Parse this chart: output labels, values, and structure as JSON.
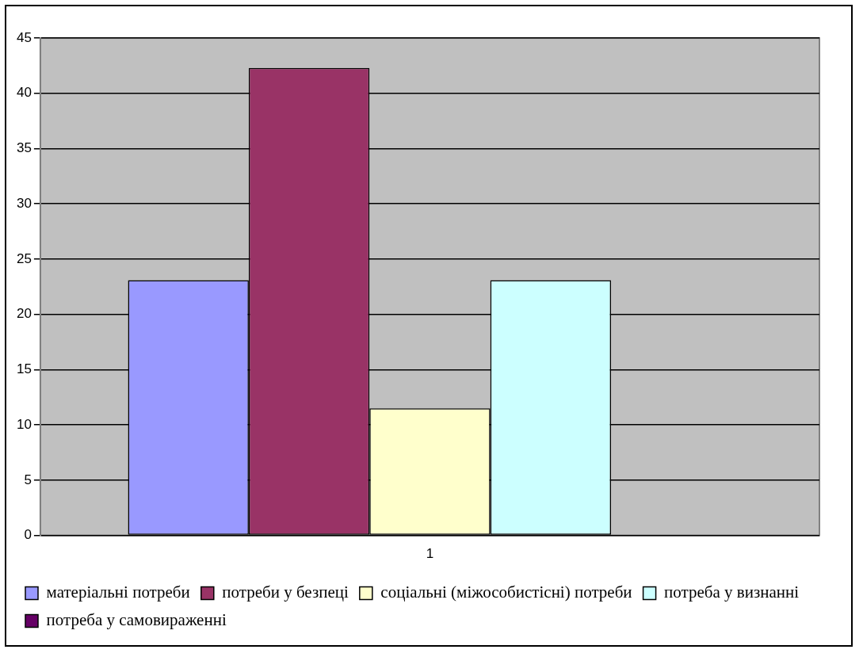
{
  "chart_data": {
    "type": "bar",
    "categories": [
      "1"
    ],
    "series": [
      {
        "name": "матеріальні потреби",
        "color": "#9999ff",
        "values": [
          23.1
        ]
      },
      {
        "name": "потреби у безпеці",
        "color": "#993366",
        "values": [
          42.3
        ]
      },
      {
        "name": "соціальні (міжособистісні) потреби",
        "color": "#ffffcc",
        "values": [
          11.5
        ]
      },
      {
        "name": "потреба у визнанні",
        "color": "#ccffff",
        "values": [
          23.1
        ]
      },
      {
        "name": "потреба у самовираженні",
        "color": "#660066",
        "values": [
          0
        ]
      }
    ],
    "ylim": [
      0,
      45
    ],
    "yticks": [
      0,
      5,
      10,
      15,
      20,
      25,
      30,
      35,
      40,
      45
    ],
    "grid": "y",
    "legend": "bottom"
  }
}
